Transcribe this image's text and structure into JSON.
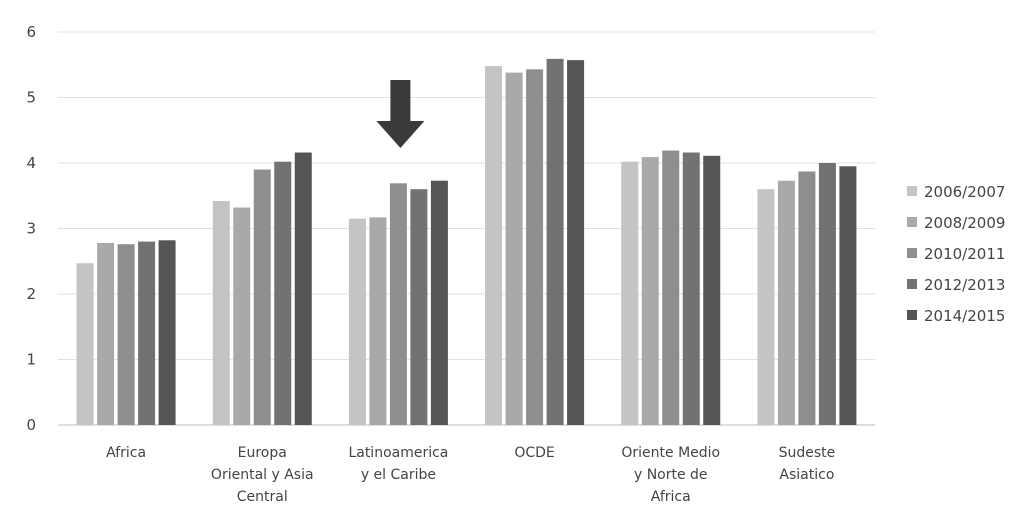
{
  "chart_data": {
    "type": "bar",
    "categories": [
      [
        "Africa"
      ],
      [
        "Europa",
        "Oriental y Asia",
        "Central"
      ],
      [
        "Latinoamerica",
        "y el Caribe"
      ],
      [
        "OCDE"
      ],
      [
        "Oriente Medio",
        "y Norte de",
        "Africa"
      ],
      [
        "Sudeste",
        "Asiatico"
      ]
    ],
    "series": [
      {
        "name": "2006/2007",
        "color": "#c4c4c4",
        "values": [
          2.47,
          3.42,
          3.15,
          5.48,
          4.02,
          3.6
        ]
      },
      {
        "name": "2008/2009",
        "color": "#a9a9a9",
        "values": [
          2.78,
          3.32,
          3.17,
          5.38,
          4.09,
          3.73
        ]
      },
      {
        "name": "2010/2011",
        "color": "#8e8e8e",
        "values": [
          2.76,
          3.9,
          3.69,
          5.43,
          4.19,
          3.87
        ]
      },
      {
        "name": "2012/2013",
        "color": "#727272",
        "values": [
          2.8,
          4.02,
          3.6,
          5.59,
          4.16,
          4.0
        ]
      },
      {
        "name": "2014/2015",
        "color": "#555555",
        "values": [
          2.82,
          4.16,
          3.73,
          5.57,
          4.11,
          3.95
        ]
      }
    ],
    "yticks": [
      "0",
      "1",
      "2",
      "3",
      "4",
      "5",
      "6"
    ],
    "ylim": [
      0,
      6
    ],
    "grid": true,
    "legend": "right",
    "annotation": {
      "type": "down-arrow",
      "category_index": 2,
      "color": "#3a3a3a"
    }
  }
}
